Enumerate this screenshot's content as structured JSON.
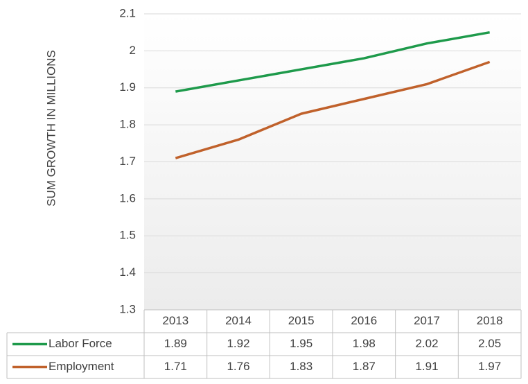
{
  "chart_data": {
    "type": "line",
    "y_label": "SUM GROWTH IN MILLIONS",
    "categories": [
      "2013",
      "2014",
      "2015",
      "2016",
      "2017",
      "2018"
    ],
    "series": [
      {
        "name": "Labor Force",
        "color": "#1e9a4b",
        "values": [
          1.89,
          1.92,
          1.95,
          1.98,
          2.02,
          2.05
        ]
      },
      {
        "name": "Employment",
        "color": "#c0612b",
        "values": [
          1.71,
          1.76,
          1.83,
          1.87,
          1.91,
          1.97
        ]
      }
    ],
    "ylim": [
      1.3,
      2.1
    ],
    "yticks": [
      1.3,
      1.4,
      1.5,
      1.6,
      1.7,
      1.8,
      1.9,
      2,
      2.1
    ],
    "grid": true
  }
}
